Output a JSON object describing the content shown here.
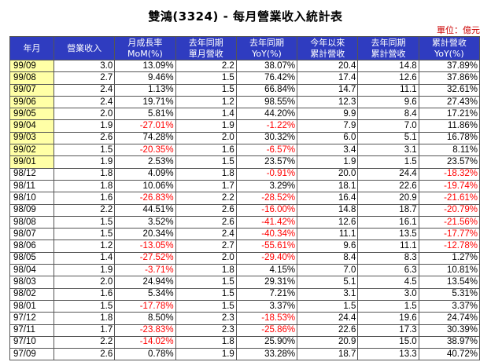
{
  "title": "雙鴻(3324) - 每月營業收入統計表",
  "unit": "單位：億元",
  "columns": [
    "年月",
    "營業收入",
    "月成長率\nMoM(%)",
    "去年同期\n單月營收",
    "去年同期\nYoY(%)",
    "今年以來\n累計營收",
    "去年同期\n累計營收",
    "累計營收\nYoY(%)"
  ],
  "rows": [
    [
      "99/09",
      "3.0",
      "13.09%",
      "2.2",
      "38.07%",
      "20.4",
      "14.8",
      "37.89%"
    ],
    [
      "99/08",
      "2.7",
      "9.46%",
      "1.5",
      "76.42%",
      "17.4",
      "12.6",
      "37.86%"
    ],
    [
      "99/07",
      "2.4",
      "1.13%",
      "1.5",
      "66.84%",
      "14.7",
      "11.1",
      "32.61%"
    ],
    [
      "99/06",
      "2.4",
      "19.71%",
      "1.2",
      "98.55%",
      "12.3",
      "9.6",
      "27.43%"
    ],
    [
      "99/05",
      "2.0",
      "5.81%",
      "1.4",
      "44.20%",
      "9.9",
      "8.4",
      "17.21%"
    ],
    [
      "99/04",
      "1.9",
      "-27.01%",
      "1.9",
      "-1.22%",
      "7.9",
      "7.0",
      "11.86%"
    ],
    [
      "99/03",
      "2.6",
      "74.28%",
      "2.0",
      "30.32%",
      "6.0",
      "5.1",
      "16.78%"
    ],
    [
      "99/02",
      "1.5",
      "-20.35%",
      "1.6",
      "-6.57%",
      "3.4",
      "3.1",
      "8.11%"
    ],
    [
      "99/01",
      "1.9",
      "2.53%",
      "1.5",
      "23.57%",
      "1.9",
      "1.5",
      "23.57%"
    ],
    [
      "98/12",
      "1.8",
      "4.09%",
      "1.8",
      "-0.91%",
      "20.0",
      "24.4",
      "-18.32%"
    ],
    [
      "98/11",
      "1.8",
      "10.06%",
      "1.7",
      "3.29%",
      "18.1",
      "22.6",
      "-19.74%"
    ],
    [
      "98/10",
      "1.6",
      "-26.83%",
      "2.2",
      "-28.52%",
      "16.4",
      "20.9",
      "-21.61%"
    ],
    [
      "98/09",
      "2.2",
      "44.51%",
      "2.6",
      "-16.00%",
      "14.8",
      "18.7",
      "-20.79%"
    ],
    [
      "98/08",
      "1.5",
      "3.52%",
      "2.6",
      "-41.42%",
      "12.6",
      "16.1",
      "-21.56%"
    ],
    [
      "98/07",
      "1.5",
      "20.34%",
      "2.4",
      "-40.34%",
      "11.1",
      "13.5",
      "-17.77%"
    ],
    [
      "98/06",
      "1.2",
      "-13.05%",
      "2.7",
      "-55.61%",
      "9.6",
      "11.1",
      "-12.78%"
    ],
    [
      "98/05",
      "1.4",
      "-27.52%",
      "2.0",
      "-29.40%",
      "8.4",
      "8.3",
      "1.27%"
    ],
    [
      "98/04",
      "1.9",
      "-3.71%",
      "1.8",
      "4.15%",
      "7.0",
      "6.3",
      "10.81%"
    ],
    [
      "98/03",
      "2.0",
      "24.94%",
      "1.5",
      "29.31%",
      "5.1",
      "4.5",
      "13.54%"
    ],
    [
      "98/02",
      "1.6",
      "5.34%",
      "1.5",
      "7.21%",
      "3.1",
      "3.0",
      "5.31%"
    ],
    [
      "98/01",
      "1.5",
      "-17.78%",
      "1.5",
      "3.37%",
      "1.5",
      "1.5",
      "3.37%"
    ],
    [
      "97/12",
      "1.8",
      "8.50%",
      "2.3",
      "-18.53%",
      "24.4",
      "19.6",
      "24.74%"
    ],
    [
      "97/11",
      "1.7",
      "-23.83%",
      "2.3",
      "-25.86%",
      "22.6",
      "17.3",
      "30.39%"
    ],
    [
      "97/10",
      "2.2",
      "-14.02%",
      "1.8",
      "25.90%",
      "20.9",
      "15.0",
      "38.97%"
    ],
    [
      "97/09",
      "2.6",
      "0.78%",
      "1.9",
      "33.28%",
      "18.7",
      "13.3",
      "40.72%"
    ]
  ],
  "colors": {
    "header_bg": "#2f3cc0",
    "header_text": "#ffffff",
    "highlight_bg": "#ffffa6",
    "negative": "#ff0000",
    "unit_text": "#cc0000"
  }
}
